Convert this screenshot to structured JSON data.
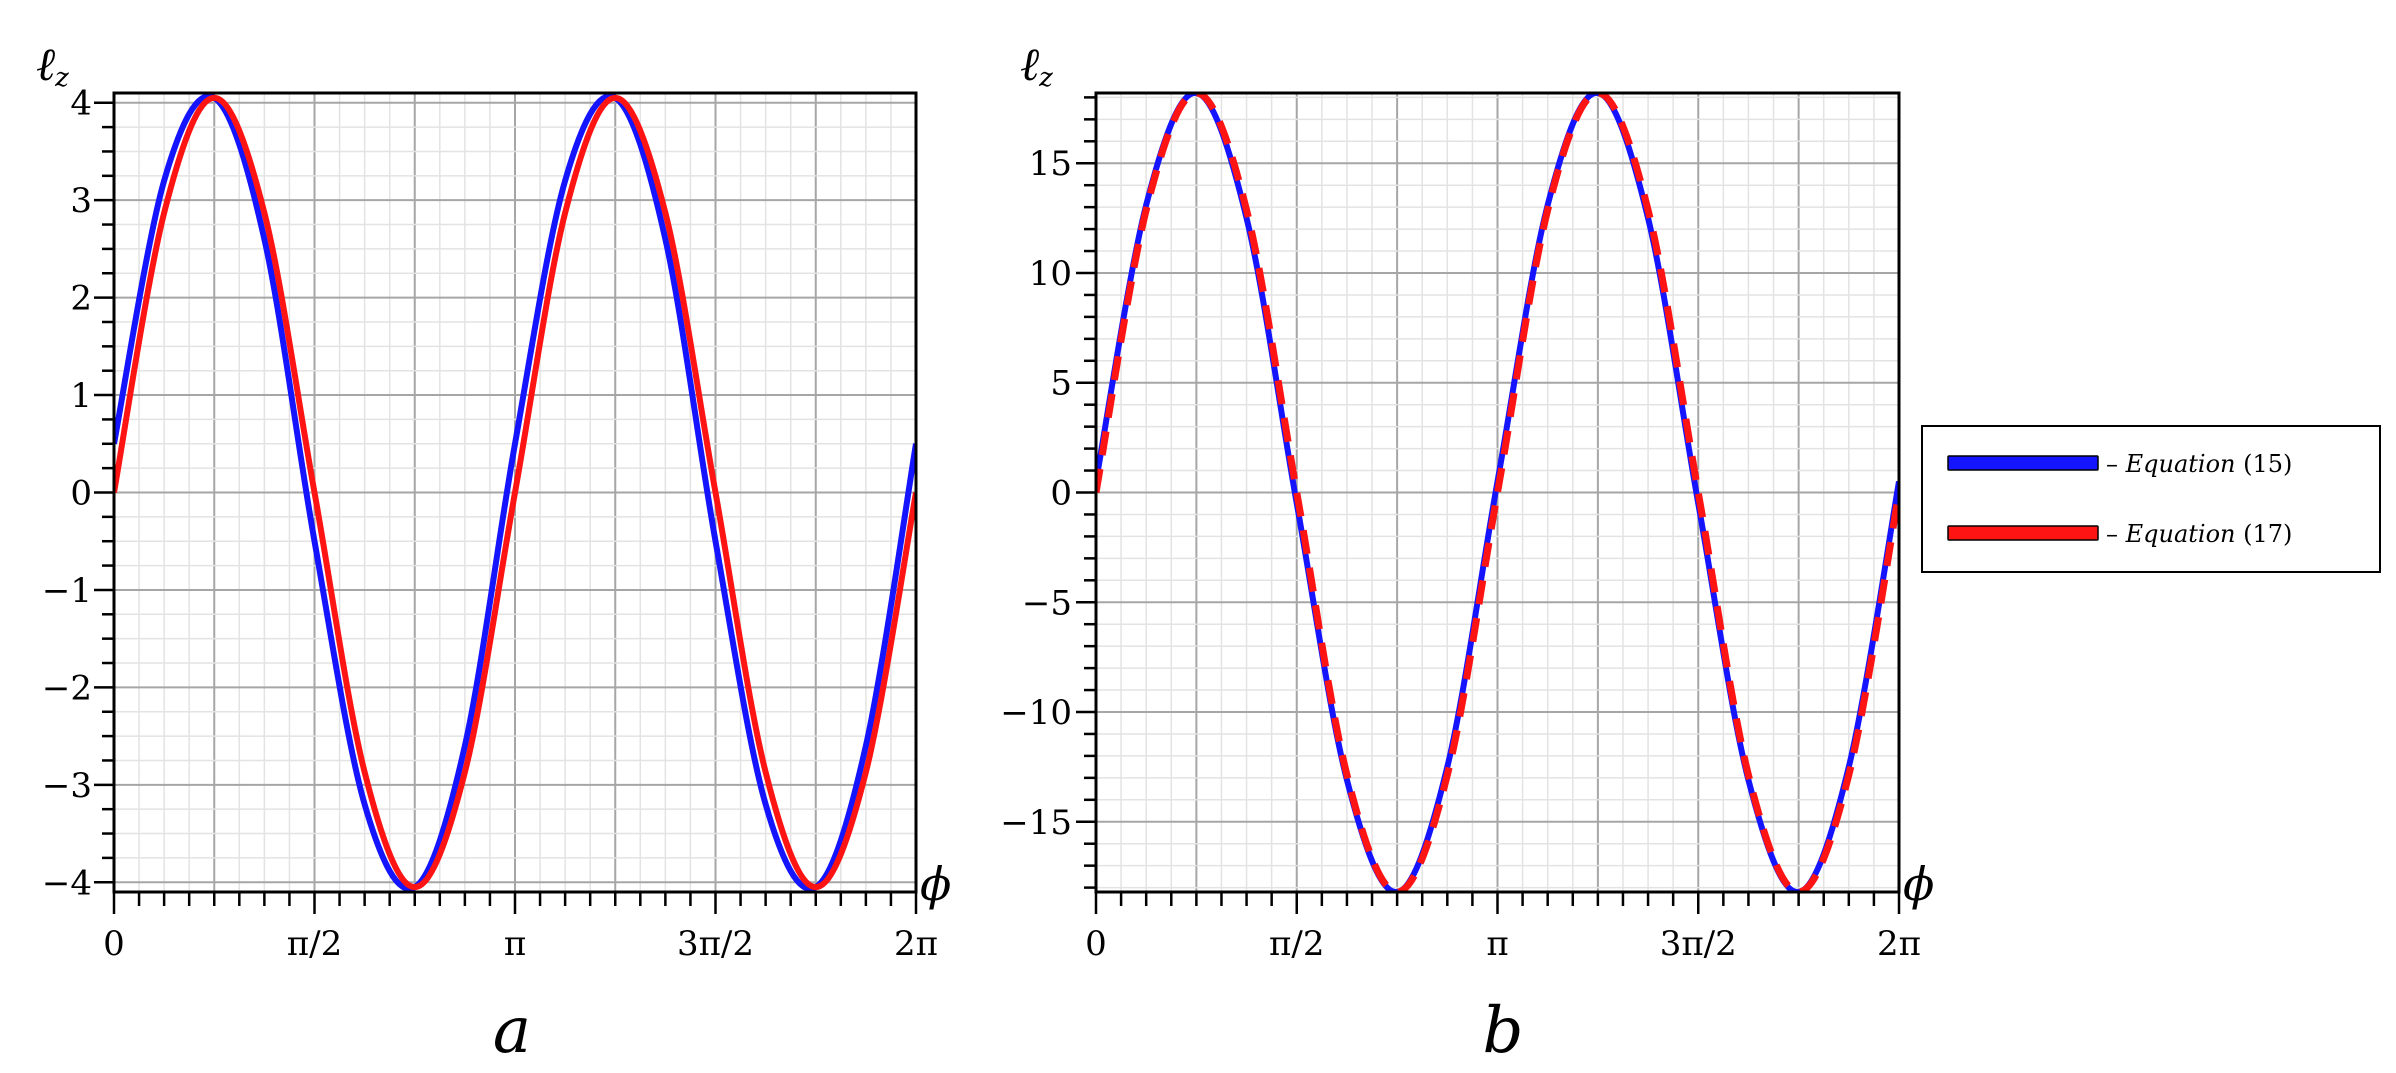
{
  "colors": {
    "eq15": "#1414ff",
    "eq17": "#ff1414",
    "major_grid": "#a6a6a6",
    "minor_grid": "#e3e3e3"
  },
  "legend": {
    "placement": "right",
    "items": [
      {
        "label_prefix": "– ",
        "label_em": "Equation",
        "label_suffix": " (15)",
        "color": "#1414ff"
      },
      {
        "label_prefix": "– ",
        "label_em": "Equation",
        "label_suffix": " (17)",
        "color": "#ff1414"
      }
    ]
  },
  "chart_data": [
    {
      "type": "line",
      "panel_label": "a",
      "xlabel": "ϕ",
      "ylabel": "ℓz",
      "xlim": [
        0,
        6.283185
      ],
      "ylim": [
        -4.1,
        4.1
      ],
      "grid": true,
      "x_ticks": [
        {
          "value": 0,
          "label": "0"
        },
        {
          "value": 1.570796,
          "label": "π/2"
        },
        {
          "value": 3.141593,
          "label": "π"
        },
        {
          "value": 4.712389,
          "label": "3π/2"
        },
        {
          "value": 6.283185,
          "label": "2π"
        }
      ],
      "y_ticks": [
        {
          "value": 4,
          "label": "4"
        },
        {
          "value": 3,
          "label": "3"
        },
        {
          "value": 2,
          "label": "2"
        },
        {
          "value": 1,
          "label": "1"
        },
        {
          "value": 0,
          "label": "0"
        },
        {
          "value": -1,
          "label": "−1"
        },
        {
          "value": -2,
          "label": "−2"
        },
        {
          "value": -3,
          "label": "−3"
        },
        {
          "value": -4,
          "label": "−4"
        }
      ],
      "series": [
        {
          "name": "Equation (15)",
          "style": "solid",
          "color": "#1414ff",
          "x": [
            0,
            0.3927,
            0.7854,
            1.1781,
            1.5708,
            1.9635,
            2.3562,
            2.7489,
            3.1416,
            3.5343,
            3.927,
            4.3197,
            4.7124,
            5.1051,
            5.4978,
            5.8905,
            6.2832
          ],
          "y": [
            0.5,
            3.2,
            4.05,
            2.6,
            -0.5,
            -3.2,
            -4.05,
            -2.6,
            0.5,
            3.2,
            4.05,
            2.6,
            -0.5,
            -3.2,
            -4.05,
            -2.6,
            0.5
          ]
        },
        {
          "name": "Equation (17)",
          "style": "solid",
          "color": "#ff1414",
          "x": [
            0,
            0.3927,
            0.7854,
            1.1781,
            1.5708,
            1.9635,
            2.3562,
            2.7489,
            3.1416,
            3.5343,
            3.927,
            4.3197,
            4.7124,
            5.1051,
            5.4978,
            5.8905,
            6.2832
          ],
          "y": [
            0,
            2.87,
            4.05,
            2.87,
            0,
            -2.87,
            -4.05,
            -2.87,
            0,
            2.87,
            4.05,
            2.87,
            0,
            -2.87,
            -4.05,
            -2.87,
            0
          ]
        }
      ]
    },
    {
      "type": "line",
      "panel_label": "b",
      "xlabel": "ϕ",
      "ylabel": "ℓz",
      "xlim": [
        0,
        6.283185
      ],
      "ylim": [
        -18.2,
        18.2
      ],
      "grid": true,
      "x_ticks": [
        {
          "value": 0,
          "label": "0"
        },
        {
          "value": 1.570796,
          "label": "π/2"
        },
        {
          "value": 3.141593,
          "label": "π"
        },
        {
          "value": 4.712389,
          "label": "3π/2"
        },
        {
          "value": 6.283185,
          "label": "2π"
        }
      ],
      "y_ticks": [
        {
          "value": 15,
          "label": "15"
        },
        {
          "value": 10,
          "label": "10"
        },
        {
          "value": 5,
          "label": "5"
        },
        {
          "value": 0,
          "label": "0"
        },
        {
          "value": -5,
          "label": "−5"
        },
        {
          "value": -10,
          "label": "−10"
        },
        {
          "value": -15,
          "label": "−15"
        }
      ],
      "series": [
        {
          "name": "Equation (15)",
          "style": "solid",
          "color": "#1414ff",
          "x": [
            0,
            0.3927,
            0.7854,
            1.1781,
            1.5708,
            1.9635,
            2.3562,
            2.7489,
            3.1416,
            3.5343,
            3.927,
            4.3197,
            4.7124,
            5.1051,
            5.4978,
            5.8905,
            6.2832
          ],
          "y": [
            0.5,
            13.1,
            18.2,
            12.5,
            -0.5,
            -13.1,
            -18.2,
            -12.5,
            0.5,
            13.1,
            18.2,
            12.5,
            -0.5,
            -13.1,
            -18.2,
            -12.5,
            0.5
          ]
        },
        {
          "name": "Equation (17)",
          "style": "dashed",
          "color": "#ff1414",
          "x": [
            0,
            0.3927,
            0.7854,
            1.1781,
            1.5708,
            1.9635,
            2.3562,
            2.7489,
            3.1416,
            3.5343,
            3.927,
            4.3197,
            4.7124,
            5.1051,
            5.4978,
            5.8905,
            6.2832
          ],
          "y": [
            0,
            12.87,
            18.2,
            12.87,
            0,
            -12.87,
            -18.2,
            -12.87,
            0,
            12.87,
            18.2,
            12.87,
            0,
            -12.87,
            -18.2,
            -12.87,
            0
          ]
        }
      ]
    }
  ]
}
